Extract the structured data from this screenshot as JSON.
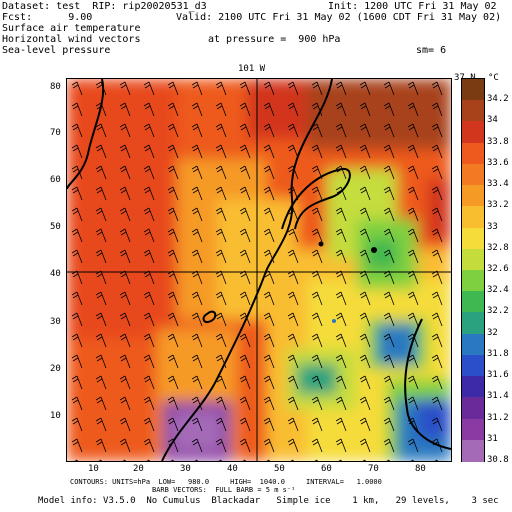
{
  "header": {
    "dataset": "Dataset: test  RIP: rip20020531_d3",
    "init": "Init: 1200 UTC Fri 31 May 02",
    "fcst": "Fcst:      9.00",
    "valid": "Valid: 2100 UTC Fri 31 May 02 (1600 CDT Fri 31 May 02)",
    "field1": "Surface air temperature",
    "field2": "Horizontal wind vectors",
    "pressure": "at pressure =  900 hPa",
    "field3": "Sea-level pressure",
    "sm": "sm= 6"
  },
  "map": {
    "top_label": "101 W",
    "right_label": "37 N",
    "x_ticks": [
      "10",
      "20",
      "30",
      "40",
      "50",
      "60",
      "70",
      "80"
    ],
    "y_ticks": [
      "80",
      "70",
      "60",
      "50",
      "40",
      "30",
      "20",
      "10"
    ]
  },
  "colorbar": {
    "unit": "°C",
    "labels": [
      "34.2",
      "34",
      "33.8",
      "33.6",
      "33.4",
      "33.2",
      "33",
      "32.8",
      "32.6",
      "32.4",
      "32.2",
      "32",
      "31.8",
      "31.6",
      "31.4",
      "31.2",
      "31",
      "30.8"
    ],
    "colors": [
      "#7a3b12",
      "#a8421a",
      "#d2361c",
      "#ee5a1e",
      "#f27a22",
      "#f69a26",
      "#f9bd30",
      "#f5dc3a",
      "#c5dd3c",
      "#7fd040",
      "#3fb850",
      "#2aa280",
      "#2a79c0",
      "#2a4fc8",
      "#3c2aa8",
      "#6a2a9a",
      "#8a3aa2",
      "#a46ab8"
    ]
  },
  "footer": {
    "line1": "CONTOURS: UNITS=hPa  LOW=   980.0     HIGH=  1040.0     INTERVAL=   1.0000",
    "line2": "BARB VECTORS:  FULL BARB = 5 m s⁻¹",
    "line3": "Model info: V3.5.0  No Cumulus  Blackadar   Simple ice    1 km,   29 levels,    3 sec"
  }
}
